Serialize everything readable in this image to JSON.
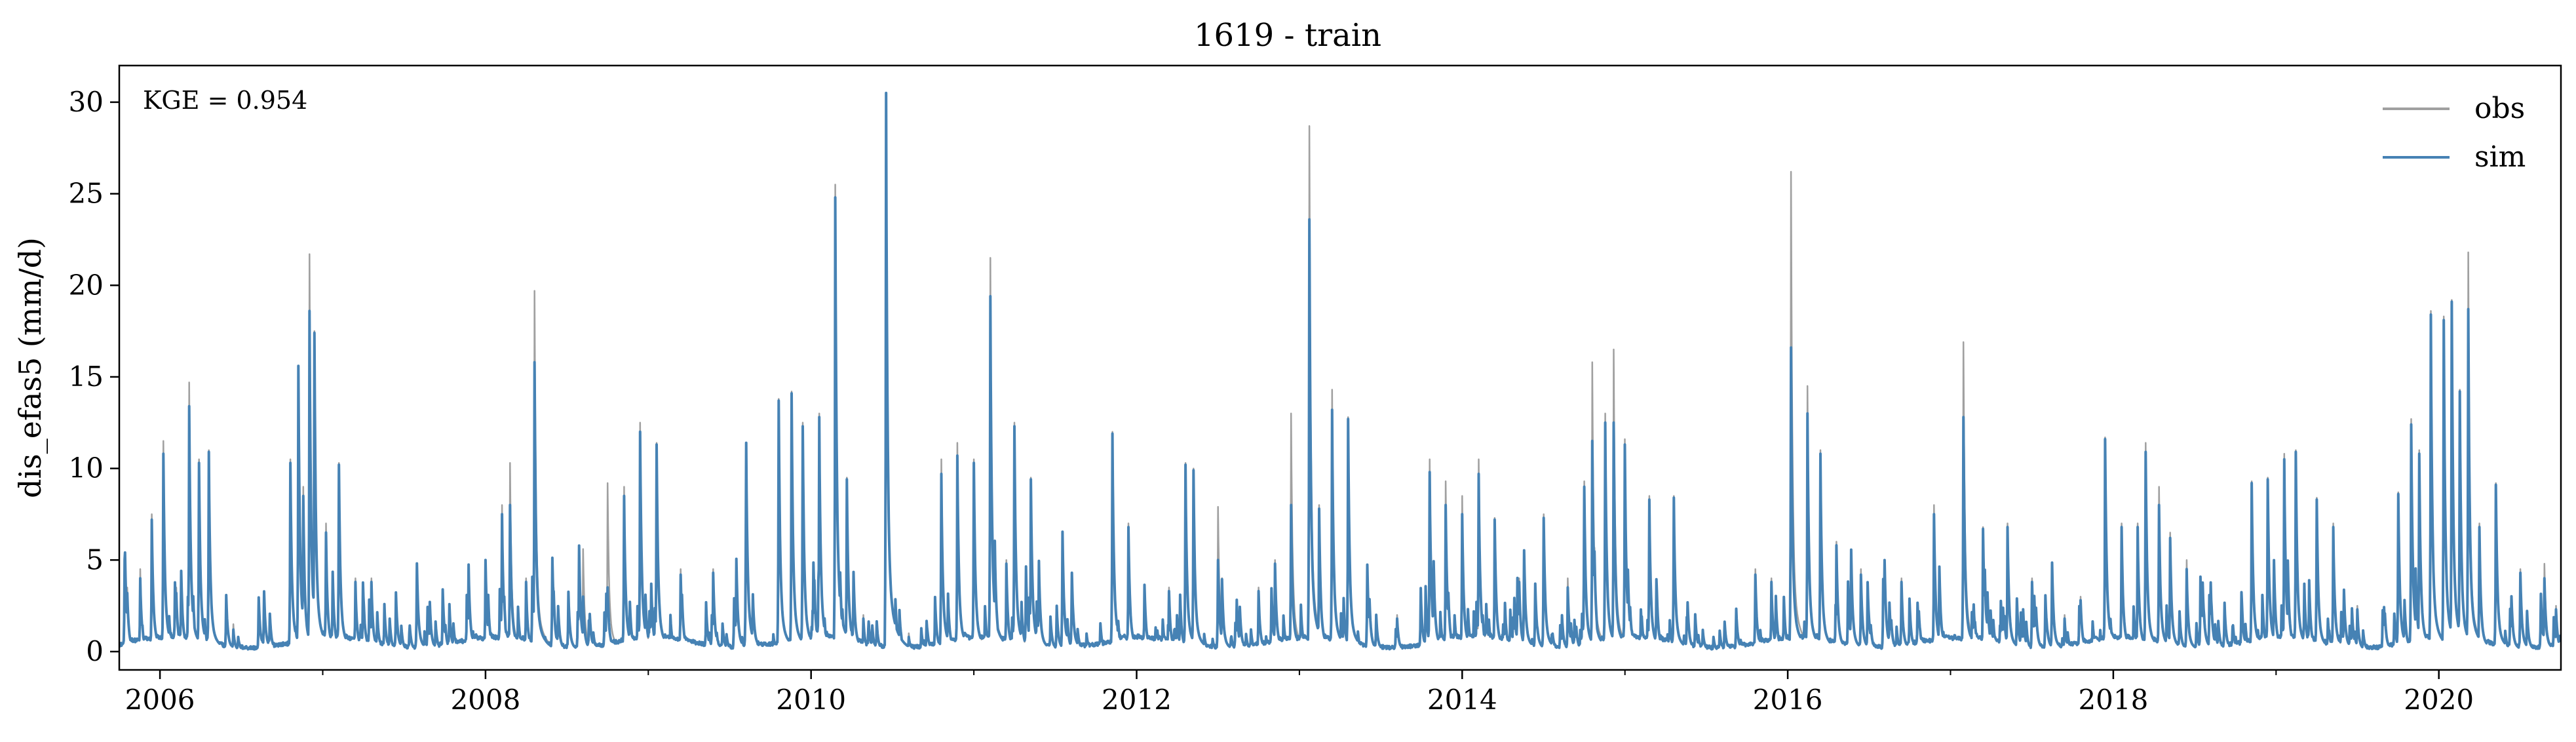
{
  "chart_data": {
    "type": "line",
    "title": "1619 - train",
    "xlabel": "",
    "ylabel": "dis_efas5 (mm/d)",
    "annotation": "KGE = 0.954",
    "xlim": [
      2005.75,
      2020.75
    ],
    "ylim": [
      -1,
      32
    ],
    "x_ticks": [
      2006,
      2008,
      2010,
      2012,
      2014,
      2016,
      2018,
      2020
    ],
    "x_tick_labels": [
      "2006",
      "2008",
      "2010",
      "2012",
      "2014",
      "2016",
      "2018",
      "2020"
    ],
    "y_ticks": [
      0,
      5,
      10,
      15,
      20,
      25,
      30
    ],
    "y_tick_labels": [
      "0",
      "5",
      "10",
      "15",
      "20",
      "25",
      "30"
    ],
    "grid": false,
    "legend_position": "top-right",
    "series": [
      {
        "name": "obs",
        "color": "#a0a0a0",
        "peaks": [
          [
            2005.8,
            3.5
          ],
          [
            2005.88,
            4.5
          ],
          [
            2005.95,
            7.5
          ],
          [
            2006.02,
            11.5
          ],
          [
            2006.1,
            3.5
          ],
          [
            2006.18,
            14.7
          ],
          [
            2006.24,
            10.5
          ],
          [
            2006.3,
            11.0
          ],
          [
            2006.45,
            1.5
          ],
          [
            2006.8,
            10.5
          ],
          [
            2006.85,
            15.6
          ],
          [
            2006.88,
            9.0
          ],
          [
            2006.92,
            21.7
          ],
          [
            2006.95,
            17.5
          ],
          [
            2007.02,
            7.0
          ],
          [
            2007.1,
            10.3
          ],
          [
            2007.2,
            4.0
          ],
          [
            2007.3,
            4.0
          ],
          [
            2007.45,
            3.0
          ],
          [
            2008.0,
            5.0
          ],
          [
            2008.1,
            8.0
          ],
          [
            2008.15,
            10.3
          ],
          [
            2008.25,
            4.0
          ],
          [
            2008.3,
            19.7
          ],
          [
            2008.42,
            3.5
          ],
          [
            2008.6,
            5.6
          ],
          [
            2008.75,
            9.2
          ],
          [
            2008.85,
            9.0
          ],
          [
            2008.95,
            12.5
          ],
          [
            2009.05,
            11.4
          ],
          [
            2009.2,
            4.5
          ],
          [
            2009.4,
            4.5
          ],
          [
            2009.6,
            11.4
          ],
          [
            2009.8,
            13.8
          ],
          [
            2009.88,
            14.2
          ],
          [
            2009.95,
            12.5
          ],
          [
            2010.05,
            13.0
          ],
          [
            2010.15,
            25.5
          ],
          [
            2010.22,
            9.5
          ],
          [
            2010.32,
            2.0
          ],
          [
            2010.46,
            30.5
          ],
          [
            2010.6,
            1.0
          ],
          [
            2010.8,
            10.5
          ],
          [
            2010.9,
            11.4
          ],
          [
            2011.0,
            10.5
          ],
          [
            2011.1,
            21.5
          ],
          [
            2011.2,
            5.0
          ],
          [
            2011.25,
            12.5
          ],
          [
            2011.35,
            9.5
          ],
          [
            2011.6,
            1.5
          ],
          [
            2011.85,
            12.0
          ],
          [
            2011.95,
            7.0
          ],
          [
            2012.2,
            3.5
          ],
          [
            2012.3,
            10.3
          ],
          [
            2012.35,
            10.0
          ],
          [
            2012.5,
            7.9
          ],
          [
            2012.75,
            3.5
          ],
          [
            2012.85,
            5.0
          ],
          [
            2012.95,
            13.0
          ],
          [
            2013.06,
            28.7
          ],
          [
            2013.12,
            8.0
          ],
          [
            2013.2,
            14.3
          ],
          [
            2013.3,
            12.8
          ],
          [
            2013.6,
            2.0
          ],
          [
            2013.8,
            10.5
          ],
          [
            2013.9,
            9.3
          ],
          [
            2014.0,
            8.5
          ],
          [
            2014.1,
            10.5
          ],
          [
            2014.2,
            7.3
          ],
          [
            2014.35,
            4.0
          ],
          [
            2014.5,
            7.5
          ],
          [
            2014.65,
            4.0
          ],
          [
            2014.75,
            9.3
          ],
          [
            2014.8,
            15.8
          ],
          [
            2014.88,
            13.0
          ],
          [
            2014.93,
            16.5
          ],
          [
            2015.0,
            11.6
          ],
          [
            2015.15,
            8.5
          ],
          [
            2015.3,
            8.5
          ],
          [
            2015.8,
            4.5
          ],
          [
            2015.9,
            4.0
          ],
          [
            2016.02,
            26.2
          ],
          [
            2016.12,
            14.5
          ],
          [
            2016.2,
            11.0
          ],
          [
            2016.3,
            6.0
          ],
          [
            2016.45,
            4.5
          ],
          [
            2016.7,
            4.0
          ],
          [
            2016.9,
            8.0
          ],
          [
            2017.08,
            16.9
          ],
          [
            2017.2,
            6.8
          ],
          [
            2017.35,
            7.0
          ],
          [
            2017.5,
            4.0
          ],
          [
            2017.7,
            2.0
          ],
          [
            2017.8,
            3.0
          ],
          [
            2017.95,
            11.7
          ],
          [
            2018.05,
            7.0
          ],
          [
            2018.15,
            7.0
          ],
          [
            2018.2,
            11.4
          ],
          [
            2018.28,
            9.0
          ],
          [
            2018.35,
            6.5
          ],
          [
            2018.45,
            5.0
          ],
          [
            2018.6,
            3.0
          ],
          [
            2018.85,
            9.3
          ],
          [
            2018.95,
            9.5
          ],
          [
            2019.05,
            10.8
          ],
          [
            2019.12,
            11.0
          ],
          [
            2019.25,
            8.4
          ],
          [
            2019.35,
            7.0
          ],
          [
            2019.5,
            2.5
          ],
          [
            2019.75,
            8.7
          ],
          [
            2019.83,
            12.7
          ],
          [
            2019.88,
            11.0
          ],
          [
            2019.95,
            18.6
          ],
          [
            2020.03,
            18.3
          ],
          [
            2020.08,
            19.2
          ],
          [
            2020.13,
            14.3
          ],
          [
            2020.18,
            21.8
          ],
          [
            2020.25,
            7.0
          ],
          [
            2020.35,
            9.2
          ],
          [
            2020.5,
            4.5
          ],
          [
            2020.65,
            4.8
          ],
          [
            2020.72,
            2.5
          ]
        ]
      },
      {
        "name": "sim",
        "color": "#4682b4",
        "peaks": [
          [
            2005.8,
            3.2
          ],
          [
            2005.88,
            4.0
          ],
          [
            2005.95,
            7.2
          ],
          [
            2006.02,
            10.8
          ],
          [
            2006.1,
            3.2
          ],
          [
            2006.18,
            13.4
          ],
          [
            2006.24,
            10.3
          ],
          [
            2006.3,
            10.9
          ],
          [
            2006.45,
            1.2
          ],
          [
            2006.8,
            10.3
          ],
          [
            2006.85,
            15.6
          ],
          [
            2006.88,
            8.5
          ],
          [
            2006.92,
            18.6
          ],
          [
            2006.95,
            17.4
          ],
          [
            2007.02,
            6.5
          ],
          [
            2007.1,
            10.2
          ],
          [
            2007.2,
            3.8
          ],
          [
            2007.3,
            3.8
          ],
          [
            2007.45,
            2.8
          ],
          [
            2008.0,
            5.0
          ],
          [
            2008.1,
            7.5
          ],
          [
            2008.15,
            8.0
          ],
          [
            2008.25,
            3.8
          ],
          [
            2008.3,
            15.8
          ],
          [
            2008.42,
            3.3
          ],
          [
            2008.6,
            3.0
          ],
          [
            2008.75,
            3.5
          ],
          [
            2008.85,
            8.5
          ],
          [
            2008.95,
            12.0
          ],
          [
            2009.05,
            11.3
          ],
          [
            2009.2,
            4.2
          ],
          [
            2009.4,
            4.3
          ],
          [
            2009.6,
            11.4
          ],
          [
            2009.8,
            13.7
          ],
          [
            2009.88,
            14.1
          ],
          [
            2009.95,
            12.3
          ],
          [
            2010.05,
            12.8
          ],
          [
            2010.15,
            24.8
          ],
          [
            2010.22,
            9.4
          ],
          [
            2010.32,
            1.8
          ],
          [
            2010.46,
            30.5
          ],
          [
            2010.6,
            0.8
          ],
          [
            2010.8,
            9.7
          ],
          [
            2010.9,
            10.7
          ],
          [
            2011.0,
            10.3
          ],
          [
            2011.1,
            19.4
          ],
          [
            2011.2,
            4.8
          ],
          [
            2011.25,
            12.3
          ],
          [
            2011.35,
            9.4
          ],
          [
            2011.6,
            1.3
          ],
          [
            2011.85,
            11.9
          ],
          [
            2011.95,
            6.8
          ],
          [
            2012.2,
            3.3
          ],
          [
            2012.3,
            10.2
          ],
          [
            2012.35,
            9.9
          ],
          [
            2012.5,
            5.0
          ],
          [
            2012.75,
            3.3
          ],
          [
            2012.85,
            4.8
          ],
          [
            2012.95,
            8.0
          ],
          [
            2013.06,
            23.6
          ],
          [
            2013.12,
            7.8
          ],
          [
            2013.2,
            13.2
          ],
          [
            2013.3,
            12.7
          ],
          [
            2013.6,
            1.8
          ],
          [
            2013.8,
            9.8
          ],
          [
            2013.9,
            8.0
          ],
          [
            2014.0,
            7.5
          ],
          [
            2014.1,
            9.7
          ],
          [
            2014.2,
            7.2
          ],
          [
            2014.35,
            3.8
          ],
          [
            2014.5,
            7.3
          ],
          [
            2014.65,
            3.5
          ],
          [
            2014.75,
            9.0
          ],
          [
            2014.8,
            11.5
          ],
          [
            2014.88,
            12.5
          ],
          [
            2014.93,
            12.5
          ],
          [
            2015.0,
            11.3
          ],
          [
            2015.15,
            8.3
          ],
          [
            2015.3,
            8.4
          ],
          [
            2015.8,
            4.2
          ],
          [
            2015.9,
            3.8
          ],
          [
            2016.02,
            16.6
          ],
          [
            2016.12,
            13.0
          ],
          [
            2016.2,
            10.8
          ],
          [
            2016.3,
            5.8
          ],
          [
            2016.45,
            4.2
          ],
          [
            2016.7,
            3.8
          ],
          [
            2016.9,
            7.5
          ],
          [
            2017.08,
            12.8
          ],
          [
            2017.2,
            6.7
          ],
          [
            2017.35,
            6.8
          ],
          [
            2017.5,
            3.8
          ],
          [
            2017.7,
            1.8
          ],
          [
            2017.8,
            2.8
          ],
          [
            2017.95,
            11.6
          ],
          [
            2018.05,
            6.8
          ],
          [
            2018.15,
            6.8
          ],
          [
            2018.2,
            10.9
          ],
          [
            2018.28,
            8.0
          ],
          [
            2018.35,
            6.2
          ],
          [
            2018.45,
            4.5
          ],
          [
            2018.6,
            2.8
          ],
          [
            2018.85,
            9.2
          ],
          [
            2018.95,
            9.4
          ],
          [
            2019.05,
            10.5
          ],
          [
            2019.12,
            10.9
          ],
          [
            2019.25,
            8.3
          ],
          [
            2019.35,
            6.8
          ],
          [
            2019.5,
            2.3
          ],
          [
            2019.75,
            8.6
          ],
          [
            2019.83,
            12.4
          ],
          [
            2019.88,
            10.8
          ],
          [
            2019.95,
            18.4
          ],
          [
            2020.03,
            18.1
          ],
          [
            2020.08,
            19.1
          ],
          [
            2020.13,
            14.2
          ],
          [
            2020.18,
            18.7
          ],
          [
            2020.25,
            6.8
          ],
          [
            2020.35,
            9.1
          ],
          [
            2020.5,
            4.3
          ],
          [
            2020.65,
            4.0
          ],
          [
            2020.72,
            2.3
          ]
        ]
      }
    ]
  }
}
